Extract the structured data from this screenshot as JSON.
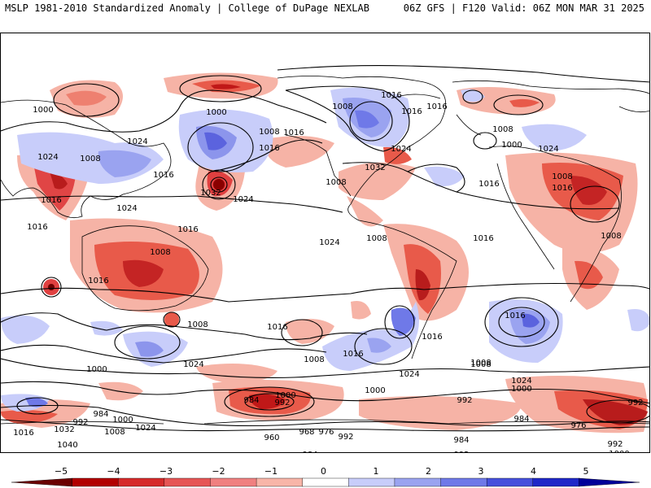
{
  "header": {
    "left_title": "MSLP 1981-2010 Standardized Anomaly | College of DuPage NEXLAB",
    "right_title": "06Z GFS | F120 Valid: 06Z MON MAR 31 2025"
  },
  "map": {
    "field": "MSLP standardized anomaly",
    "projection": "global lat-lon",
    "isobar_labels": [
      "1000",
      "1008",
      "1024",
      "1016",
      "1016",
      "1024",
      "1032",
      "1000",
      "1008",
      "1016",
      "1024",
      "1016",
      "1008",
      "1032",
      "1024",
      "1016",
      "1024",
      "1016",
      "1008",
      "1016",
      "1016",
      "1024",
      "1000",
      "1008",
      "1016",
      "1024",
      "1016",
      "1008",
      "1008",
      "1008",
      "1016",
      "1008",
      "1016",
      "1016",
      "1008",
      "1016",
      "1016",
      "1024",
      "1008",
      "1000",
      "1000",
      "1016",
      "1024",
      "1008",
      "1016",
      "1000",
      "992",
      "984",
      "1000",
      "992",
      "1016",
      "1032",
      "1008",
      "1024",
      "1040",
      "984",
      "992",
      "960",
      "968",
      "976",
      "992",
      "984",
      "1000",
      "1008",
      "1000",
      "992",
      "1016",
      "1008",
      "1024",
      "984",
      "976",
      "992",
      "1000",
      "992",
      "1000",
      "1008",
      "984",
      "1024"
    ]
  },
  "colorbar": {
    "ticks": [
      "−5",
      "−4",
      "−3",
      "−2",
      "−1",
      "0",
      "1",
      "2",
      "3",
      "4",
      "5"
    ],
    "colors": [
      "#6b0000",
      "#b20000",
      "#d62b2b",
      "#e65555",
      "#f08080",
      "#f8b5a8",
      "#ffffff",
      "#c8cdfa",
      "#9aa3f0",
      "#6f79e8",
      "#4650dc",
      "#1f28c8",
      "#000099"
    ]
  }
}
